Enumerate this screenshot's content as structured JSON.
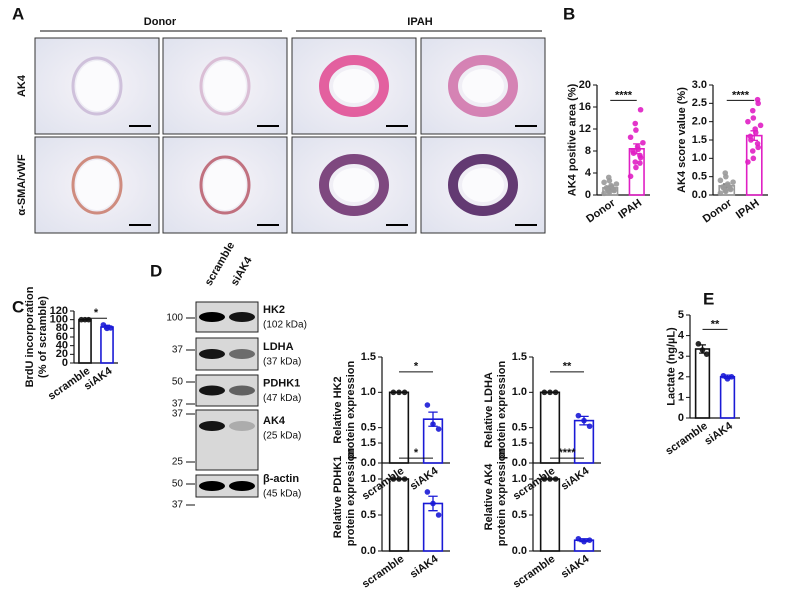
{
  "panels": [
    "A",
    "B",
    "C",
    "D",
    "E"
  ],
  "histology": {
    "groups": [
      "Donor",
      "IPAH"
    ],
    "rows": [
      "AK4",
      "α-SMA/vWF"
    ]
  },
  "blot": {
    "lanes": [
      "scramble",
      "siAK4"
    ],
    "markers": [
      100,
      37,
      50,
      37,
      37,
      25,
      50,
      37
    ],
    "proteins": [
      {
        "name": "HK2",
        "size": "(102 kDa)"
      },
      {
        "name": "LDHA",
        "size": "(37 kDa)"
      },
      {
        "name": "PDHK1",
        "size": "(47 kDa)"
      },
      {
        "name": "AK4",
        "size": "(25 kDa)"
      },
      {
        "name": "β-actin",
        "size": "(45 kDa)"
      }
    ]
  },
  "chart_data": [
    {
      "type": "bar",
      "ylabel": [
        "AK4 positive area (%)"
      ],
      "categories": [
        "Donor",
        "IPAH"
      ],
      "colors": [
        "#9a9a9a",
        "#e01fc4"
      ],
      "values": [
        1.3,
        8.4
      ],
      "errors": [
        0.3,
        0.9
      ],
      "points": [
        [
          0.3,
          0.5,
          0.7,
          0.9,
          1.0,
          1.1,
          1.3,
          1.5,
          1.7,
          2.0,
          2.3,
          2.6,
          3.2,
          0.8
        ],
        [
          3.4,
          5.0,
          6.0,
          6.8,
          7.2,
          7.6,
          8.0,
          8.3,
          8.8,
          9.5,
          10.5,
          11.8,
          13.0,
          15.5,
          5.8
        ]
      ],
      "ylim": [
        0,
        20
      ],
      "yticks": [
        0,
        4,
        8,
        12,
        16,
        20
      ],
      "annotation": "****"
    },
    {
      "type": "bar",
      "ylabel": [
        "AK4 score value (%)"
      ],
      "categories": [
        "Donor",
        "IPAH"
      ],
      "colors": [
        "#9a9a9a",
        "#e01fc4"
      ],
      "values": [
        0.25,
        1.62
      ],
      "errors": [
        0.05,
        0.13
      ],
      "points": [
        [
          0.05,
          0.1,
          0.12,
          0.15,
          0.18,
          0.2,
          0.22,
          0.25,
          0.3,
          0.35,
          0.4,
          0.5,
          0.6
        ],
        [
          0.9,
          1.0,
          1.2,
          1.3,
          1.4,
          1.5,
          1.6,
          1.7,
          1.8,
          1.9,
          2.0,
          2.1,
          2.3,
          2.5,
          2.6
        ]
      ],
      "ylim": [
        0,
        3
      ],
      "yticks": [
        {
          "value": 0,
          "label": "0.0"
        },
        {
          "value": 0.5,
          "label": "0.5"
        },
        {
          "value": 1,
          "label": "1.0"
        },
        {
          "value": 1.5,
          "label": "1.5"
        },
        {
          "value": 2,
          "label": "2.0"
        },
        {
          "value": 2.5,
          "label": "2.5"
        },
        {
          "value": 3,
          "label": "3.0"
        }
      ],
      "annotation": "****"
    },
    {
      "type": "bar",
      "ylabel": [
        "BrdU incorporation",
        "(% of scramble)"
      ],
      "categories": [
        "scramble",
        "siAK4"
      ],
      "colors": [
        "#111111",
        "#1a1ad6"
      ],
      "values": [
        100,
        83
      ],
      "errors": [
        0,
        4
      ],
      "points": [
        [
          100,
          100,
          100
        ],
        [
          88,
          80,
          81
        ]
      ],
      "ylim": [
        0,
        120
      ],
      "yticks": [
        0,
        20,
        40,
        60,
        80,
        100,
        120
      ],
      "annotation": "*"
    },
    {
      "type": "bar",
      "ylabel": [
        "Relative HK2",
        "protein expression"
      ],
      "categories": [
        "scramble",
        "siAK4"
      ],
      "colors": [
        "#111111",
        "#1a1ad6"
      ],
      "values": [
        1.0,
        0.62
      ],
      "errors": [
        0,
        0.1
      ],
      "points": [
        [
          1.0,
          1.0,
          1.0
        ],
        [
          0.82,
          0.55,
          0.48
        ]
      ],
      "ylim": [
        0,
        1.5
      ],
      "yticks": [
        {
          "value": 0,
          "label": "0.0"
        },
        {
          "value": 0.5,
          "label": "0.5"
        },
        {
          "value": 1,
          "label": "1.0"
        },
        {
          "value": 1.5,
          "label": "1.5"
        }
      ],
      "annotation": "*"
    },
    {
      "type": "bar",
      "ylabel": [
        "Relative LDHA",
        "protein expression"
      ],
      "categories": [
        "scramble",
        "siAK4"
      ],
      "colors": [
        "#111111",
        "#1a1ad6"
      ],
      "values": [
        1.0,
        0.6
      ],
      "errors": [
        0,
        0.06
      ],
      "points": [
        [
          1.0,
          1.0,
          1.0
        ],
        [
          0.67,
          0.6,
          0.52
        ]
      ],
      "ylim": [
        0,
        1.5
      ],
      "yticks": [
        {
          "value": 0,
          "label": "0.0"
        },
        {
          "value": 0.5,
          "label": "0.5"
        },
        {
          "value": 1,
          "label": "1.0"
        },
        {
          "value": 1.5,
          "label": "1.5"
        }
      ],
      "annotation": "**"
    },
    {
      "type": "bar",
      "ylabel": [
        "Relative PDHK1",
        "protein expression"
      ],
      "categories": [
        "scramble",
        "siAK4"
      ],
      "colors": [
        "#111111",
        "#1a1ad6"
      ],
      "values": [
        1.0,
        0.66
      ],
      "errors": [
        0,
        0.1
      ],
      "points": [
        [
          1.0,
          1.0,
          1.0
        ],
        [
          0.82,
          0.66,
          0.5
        ]
      ],
      "ylim": [
        0,
        1.5
      ],
      "yticks": [
        {
          "value": 0,
          "label": "0.0"
        },
        {
          "value": 0.5,
          "label": "0.5"
        },
        {
          "value": 1,
          "label": "1.0"
        },
        {
          "value": 1.5,
          "label": "1.5"
        }
      ],
      "annotation": "*"
    },
    {
      "type": "bar",
      "ylabel": [
        "Relative AK4",
        "protein expression"
      ],
      "categories": [
        "scramble",
        "siAK4"
      ],
      "colors": [
        "#111111",
        "#1a1ad6"
      ],
      "values": [
        1.0,
        0.15
      ],
      "errors": [
        0,
        0.02
      ],
      "points": [
        [
          1.0,
          1.0,
          1.0
        ],
        [
          0.17,
          0.13,
          0.15
        ]
      ],
      "ylim": [
        0,
        1.5
      ],
      "yticks": [
        {
          "value": 0,
          "label": "0.0"
        },
        {
          "value": 0.5,
          "label": "0.5"
        },
        {
          "value": 1,
          "label": "1.0"
        },
        {
          "value": 1.5,
          "label": "1.5"
        }
      ],
      "annotation": "****"
    },
    {
      "type": "bar",
      "ylabel": [
        "Lactate (ng/µL)"
      ],
      "categories": [
        "scramble",
        "siAK4"
      ],
      "colors": [
        "#111111",
        "#1a1ad6"
      ],
      "values": [
        3.35,
        2.0
      ],
      "errors": [
        0.2,
        0.08
      ],
      "points": [
        [
          3.6,
          3.3,
          3.1
        ],
        [
          2.05,
          1.9,
          2.0
        ]
      ],
      "ylim": [
        0,
        5
      ],
      "yticks": [
        0,
        1,
        2,
        3,
        4,
        5
      ],
      "annotation": "**"
    }
  ]
}
